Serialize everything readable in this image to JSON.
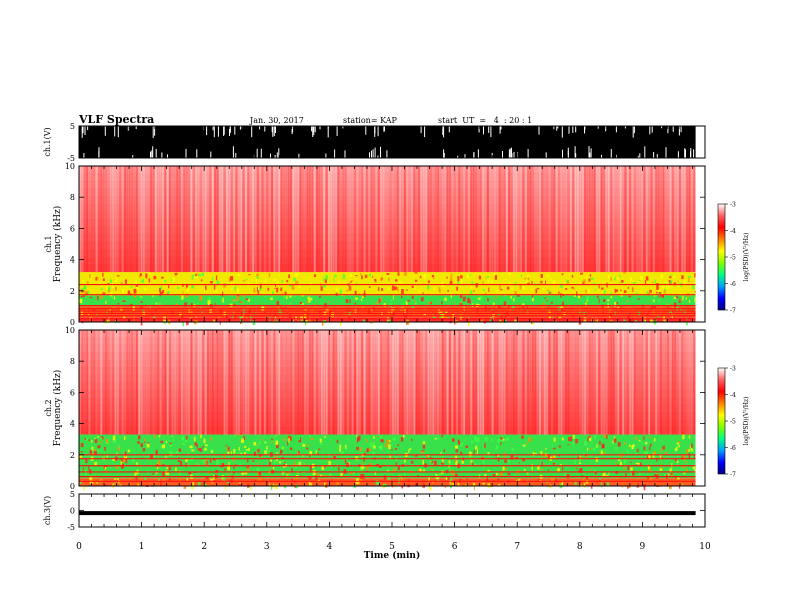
{
  "header": {
    "title": "VLF Spectra",
    "date": "Jan. 30, 2017",
    "station": "station= KAP",
    "start": "start  UT  =   4  : 20 : 1"
  },
  "colors": {
    "background_high": "#ff2a2a",
    "band_mid": "#f5f500",
    "band_low": "#40e040",
    "trace": "#000000"
  },
  "chart_data": [
    {
      "type": "line",
      "name": "ch1-waveform",
      "ylabel": "ch.1(V)",
      "ylim": [
        -5,
        5
      ],
      "yticks": [
        "5",
        "-5"
      ],
      "xlim": [
        0,
        10
      ],
      "x_end": 9.85,
      "note_visible": "dense saturated waveform between -5 and 5 V"
    },
    {
      "type": "heatmap",
      "name": "ch1-spectrogram",
      "ylabel": "ch.1",
      "ylabel2": "Frequency (kHz)",
      "ylim": [
        0,
        10
      ],
      "yticks": [
        "0",
        "2",
        "4",
        "6",
        "8",
        "10"
      ],
      "xlim": [
        0,
        10
      ],
      "x_end": 9.85,
      "colorbar": {
        "label": "log(PSD)(V²/Hz)",
        "range": [
          -7,
          -3
        ],
        "ticks": [
          "-3",
          "-4",
          "-5",
          "-6",
          "-7"
        ],
        "colors": [
          "#000080",
          "#0000ff",
          "#00a0ff",
          "#00ff80",
          "#80ff00",
          "#ffff00",
          "#ff8000",
          "#ff0000",
          "#ff6060",
          "#ffffff"
        ]
      },
      "bands": [
        {
          "from_khz": 0.0,
          "to_khz": 0.3,
          "level": "high"
        },
        {
          "from_khz": 0.3,
          "to_khz": 1.0,
          "level": "mixed"
        },
        {
          "from_khz": 1.0,
          "to_khz": 1.7,
          "level": "low"
        },
        {
          "from_khz": 1.7,
          "to_khz": 3.2,
          "level": "mid"
        },
        {
          "from_khz": 3.2,
          "to_khz": 10.0,
          "level": "high"
        }
      ]
    },
    {
      "type": "heatmap",
      "name": "ch2-spectrogram",
      "ylabel": "ch.2",
      "ylabel2": "Frequency (kHz)",
      "ylim": [
        0,
        10
      ],
      "yticks": [
        "0",
        "2",
        "4",
        "6",
        "8",
        "10"
      ],
      "xlim": [
        0,
        10
      ],
      "x_end": 9.85,
      "colorbar": {
        "label": "log(PSD)(V²/Hz)",
        "range": [
          -7,
          -3
        ],
        "ticks": [
          "-3",
          "-4",
          "-5",
          "-6",
          "-7"
        ],
        "colors": [
          "#000080",
          "#0000ff",
          "#00a0ff",
          "#00ff80",
          "#80ff00",
          "#ffff00",
          "#ff8000",
          "#ff0000",
          "#ff6060",
          "#ffffff"
        ]
      },
      "bands": [
        {
          "from_khz": 0.0,
          "to_khz": 0.5,
          "level": "mixed"
        },
        {
          "from_khz": 0.5,
          "to_khz": 1.9,
          "level": "low"
        },
        {
          "from_khz": 1.9,
          "to_khz": 3.3,
          "level": "low"
        },
        {
          "from_khz": 3.3,
          "to_khz": 10.0,
          "level": "high"
        }
      ]
    },
    {
      "type": "line",
      "name": "ch3-waveform",
      "ylabel": "ch.3(V)",
      "ylim": [
        -5,
        5
      ],
      "yticks": [
        "5",
        "0",
        "-5"
      ],
      "xlim": [
        0,
        10
      ],
      "x_end": 9.85,
      "constant_value": -0.8
    }
  ],
  "xaxis": {
    "label": "Time (min)",
    "ticks": [
      "0",
      "1",
      "2",
      "3",
      "4",
      "5",
      "6",
      "7",
      "8",
      "9",
      "10"
    ]
  }
}
